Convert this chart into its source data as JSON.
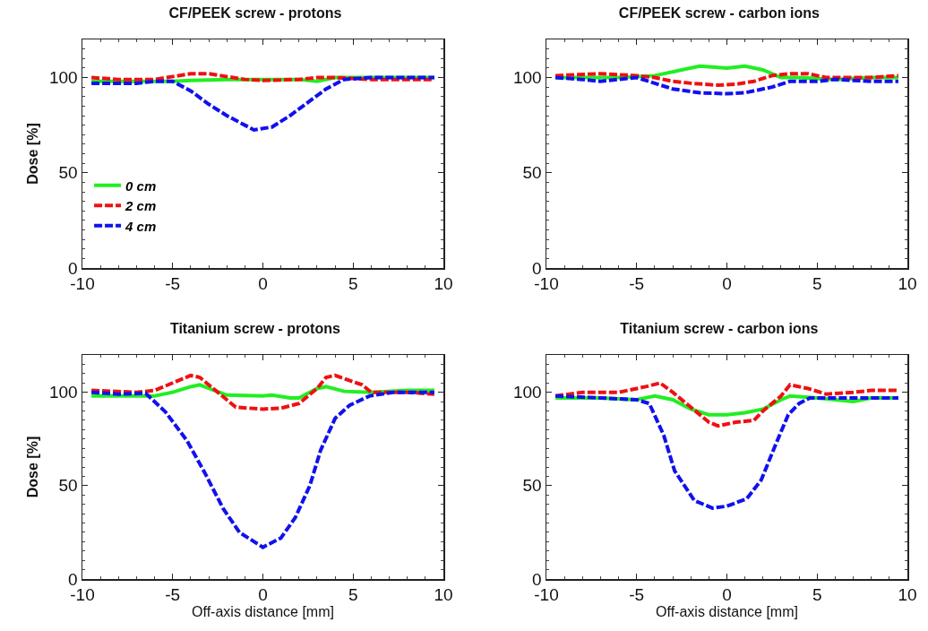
{
  "chart_data": [
    {
      "type": "line",
      "title": "CF/PEEK screw - protons",
      "ylabel": "Dose [%]",
      "xlim": [
        -10,
        10
      ],
      "xticks": [
        -10,
        -5,
        0,
        5,
        10
      ],
      "ylim": [
        0,
        120
      ],
      "yticks": [
        0,
        50,
        100
      ],
      "grid": false,
      "legend": "bottom left",
      "marker": "none",
      "series": [
        {
          "name": "0 cm",
          "color": "#22ee22",
          "line_style": "solid",
          "x": [
            -9.5,
            -7,
            -5,
            -4,
            -2,
            0,
            2,
            3,
            4,
            6,
            8,
            9.5
          ],
          "values": [
            98,
            98,
            98,
            98.5,
            99,
            99,
            99,
            98,
            100,
            100,
            100,
            100
          ]
        },
        {
          "name": "2 cm",
          "color": "#ee1111",
          "line_style": "dashed",
          "x": [
            -9.5,
            -8,
            -6,
            -4,
            -3,
            -1,
            0,
            2,
            3,
            4,
            6,
            8,
            9.5
          ],
          "values": [
            100,
            99,
            99,
            102,
            102,
            99,
            98.5,
            99,
            100,
            100,
            99,
            99,
            99
          ]
        },
        {
          "name": "4 cm",
          "color": "#1111ee",
          "line_style": "dashed",
          "x": [
            -9.5,
            -7,
            -6,
            -5,
            -4,
            -3,
            -2,
            -1,
            -0.5,
            0.5,
            1.5,
            2.5,
            3.5,
            4.5,
            6,
            8,
            9.5
          ],
          "values": [
            97,
            97,
            98,
            98,
            93,
            86,
            80,
            75,
            72.5,
            74,
            80,
            87,
            94,
            99,
            100,
            100,
            100
          ]
        }
      ]
    },
    {
      "type": "line",
      "title": "CF/PEEK screw - carbon ions",
      "xlim": [
        -10,
        10
      ],
      "xticks": [
        -10,
        -5,
        0,
        5,
        10
      ],
      "ylim": [
        0,
        120
      ],
      "yticks": [
        0,
        50,
        100
      ],
      "grid": false,
      "legend": false,
      "marker": "none",
      "series": [
        {
          "color": "#22ee22",
          "line_style": "solid",
          "x": [
            -9.5,
            -6,
            -4,
            -2.5,
            -1.5,
            0,
            1,
            2,
            3,
            4,
            6,
            8,
            9.5
          ],
          "values": [
            100,
            100,
            101,
            104,
            106,
            105,
            106,
            104,
            100,
            100,
            99,
            100,
            100
          ]
        },
        {
          "color": "#ee1111",
          "line_style": "dashed",
          "x": [
            -9.5,
            -7,
            -5,
            -4,
            -3,
            -2,
            -0.5,
            0.5,
            1.5,
            2.5,
            3.5,
            4.5,
            5.5,
            8,
            9.5
          ],
          "values": [
            101,
            102,
            101,
            100,
            98,
            97,
            96,
            96.5,
            98,
            101,
            102,
            102,
            100,
            100,
            101
          ]
        },
        {
          "color": "#1111ee",
          "line_style": "dashed",
          "x": [
            -9.5,
            -8,
            -7,
            -6,
            -5,
            -4,
            -3,
            -1.5,
            0,
            1,
            2.5,
            3.5,
            5,
            6,
            8,
            9.5
          ],
          "values": [
            100,
            99,
            98,
            99,
            100,
            97,
            94,
            92,
            91.5,
            92,
            95,
            98,
            98,
            99,
            98,
            98
          ]
        }
      ]
    },
    {
      "type": "line",
      "title": "Titanium screw - protons",
      "xlabel": "Off-axis distance [mm]",
      "ylabel": "Dose [%]",
      "xlim": [
        -10,
        10
      ],
      "xticks": [
        -10,
        -5,
        0,
        5,
        10
      ],
      "ylim": [
        0,
        120
      ],
      "yticks": [
        0,
        50,
        100
      ],
      "grid": false,
      "legend": false,
      "marker": "none",
      "series": [
        {
          "color": "#22ee22",
          "line_style": "solid",
          "x": [
            -9.5,
            -7,
            -6,
            -5,
            -4,
            -3.5,
            -2,
            0,
            0.5,
            1.5,
            2,
            3,
            3.5,
            4.5,
            6,
            8,
            9.5
          ],
          "values": [
            98,
            98,
            98,
            100,
            103,
            104,
            98.5,
            98,
            98.5,
            97,
            97,
            102,
            103,
            100.5,
            100,
            101,
            101
          ]
        },
        {
          "color": "#ee1111",
          "line_style": "dashed",
          "x": [
            -9.5,
            -7,
            -6,
            -5,
            -4,
            -3.5,
            -2.5,
            -1.5,
            0,
            1,
            2,
            3,
            3.5,
            4,
            5.5,
            6,
            8,
            9.5
          ],
          "values": [
            101,
            100,
            101,
            105,
            109,
            108,
            100,
            92,
            91,
            91.5,
            94,
            102,
            108,
            109,
            104,
            100,
            100,
            99
          ]
        },
        {
          "color": "#1111ee",
          "line_style": "dashed",
          "x": [
            -9.5,
            -8,
            -6.5,
            -5.4,
            -4.2,
            -3.2,
            -2.2,
            -1.3,
            0,
            1,
            1.8,
            2.6,
            3.2,
            4,
            4.8,
            5.9,
            7.2,
            9.5
          ],
          "values": [
            100,
            99,
            99.5,
            89.5,
            74,
            56.5,
            37.7,
            25,
            17,
            22,
            33,
            50,
            69,
            86,
            93,
            98,
            100,
            100
          ]
        }
      ]
    },
    {
      "type": "line",
      "title": "Titanium screw - carbon ions",
      "xlabel": "Off-axis distance [mm]",
      "xlim": [
        -10,
        10
      ],
      "xticks": [
        -10,
        -5,
        0,
        5,
        10
      ],
      "ylim": [
        0,
        120
      ],
      "yticks": [
        0,
        50,
        100
      ],
      "grid": false,
      "legend": false,
      "marker": "none",
      "series": [
        {
          "color": "#22ee22",
          "line_style": "solid",
          "x": [
            -9.5,
            -7,
            -5,
            -4,
            -3,
            -2,
            -1,
            0,
            1,
            2,
            3,
            3.5,
            5,
            6,
            7,
            8,
            9.5
          ],
          "values": [
            97,
            97,
            96,
            98,
            96,
            91,
            88,
            88,
            89,
            91,
            96,
            98,
            97,
            96,
            95,
            97,
            97
          ]
        },
        {
          "color": "#ee1111",
          "line_style": "dashed",
          "x": [
            -9.5,
            -8,
            -6,
            -4.5,
            -3.7,
            -3,
            -2,
            -1,
            -0.5,
            0.5,
            1.5,
            2,
            3,
            3.5,
            4.5,
            5.5,
            7,
            8,
            9.5
          ],
          "values": [
            98,
            100,
            100,
            103,
            105,
            100,
            92,
            84,
            82,
            84,
            85,
            90,
            98,
            104,
            102,
            99,
            100,
            101,
            101
          ]
        },
        {
          "color": "#1111ee",
          "line_style": "dashed",
          "x": [
            -9.5,
            -7,
            -5,
            -4.3,
            -3.5,
            -2.9,
            -1.8,
            -0.8,
            0,
            1.1,
            1.9,
            2.7,
            3.4,
            4,
            4.6,
            6,
            8,
            9.5
          ],
          "values": [
            98,
            97,
            96,
            94,
            77,
            58,
            42,
            38,
            39,
            43,
            53,
            72,
            88,
            94,
            97,
            97,
            97,
            97
          ]
        }
      ]
    }
  ]
}
